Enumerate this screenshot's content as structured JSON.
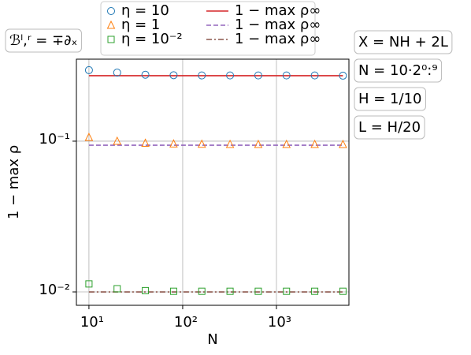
{
  "chart_data": {
    "type": "scatter",
    "xlabel": "N",
    "ylabel": "1 − max ρ",
    "x": [
      10,
      20,
      40,
      80,
      160,
      320,
      640,
      1280,
      2560,
      5120
    ],
    "series": [
      {
        "name": "η = 10",
        "kind": "scatter",
        "marker": "circle",
        "color": "#1f77b4",
        "values": [
          0.296,
          0.285,
          0.276,
          0.274,
          0.273,
          0.273,
          0.273,
          0.273,
          0.273,
          0.272
        ]
      },
      {
        "name": "η = 1",
        "kind": "scatter",
        "marker": "triangle",
        "color": "#ff7f0e",
        "values": [
          0.106,
          0.1,
          0.097,
          0.096,
          0.0955,
          0.0953,
          0.0952,
          0.0952,
          0.0952,
          0.0951
        ]
      },
      {
        "name": "η = 10⁻²",
        "kind": "scatter",
        "marker": "square",
        "color": "#2ca02c",
        "values": [
          0.0113,
          0.0105,
          0.0102,
          0.0101,
          0.0101,
          0.0101,
          0.0101,
          0.0101,
          0.0101,
          0.0101
        ]
      },
      {
        "name": "1 − max ρ∞",
        "kind": "line",
        "dash": "solid",
        "color": "#d62728",
        "values": [
          0.272,
          0.272,
          0.272,
          0.272,
          0.272,
          0.272,
          0.272,
          0.272,
          0.272,
          0.272
        ]
      },
      {
        "name": "1 − max ρ∞",
        "kind": "line",
        "dash": "dashed",
        "color": "#9467bd",
        "values": [
          0.094,
          0.094,
          0.094,
          0.094,
          0.094,
          0.094,
          0.094,
          0.094,
          0.094,
          0.094
        ]
      },
      {
        "name": "1 − max ρ∞",
        "kind": "line",
        "dash": "dashdot",
        "color": "#8c564b",
        "values": [
          0.01,
          0.01,
          0.01,
          0.01,
          0.01,
          0.01,
          0.01,
          0.01,
          0.01,
          0.01
        ]
      }
    ],
    "xscale": "log",
    "yscale": "log",
    "xlim": [
      7.35,
      5930
    ],
    "ylim": [
      0.00815,
      0.35
    ],
    "xticks": [
      {
        "value": 10,
        "label": "10¹"
      },
      {
        "value": 100,
        "label": "10²"
      },
      {
        "value": 1000,
        "label": "10³"
      }
    ],
    "yticks": [
      {
        "value": 0.01,
        "label": "10⁻²"
      },
      {
        "value": 0.1,
        "label": "10⁻¹"
      }
    ],
    "grid": true,
    "legend": "top",
    "annotations_left": [
      "ℬˡ,ʳ = ∓∂ₓ"
    ],
    "annotations_right": [
      "X = NH + 2L",
      "N = 10·2⁰:⁹",
      "H = 1/10",
      "L = H/20"
    ]
  }
}
